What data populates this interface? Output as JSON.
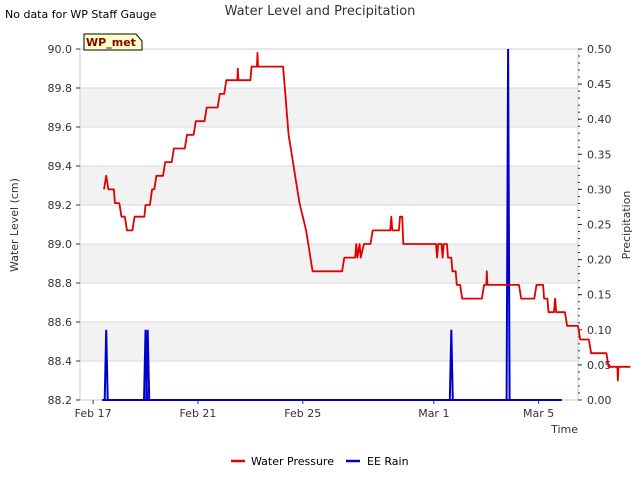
{
  "chart_data": {
    "type": "line",
    "title": "Water Level and Precipitation",
    "notice": "No data for WP Staff Gauge",
    "station_badge": "WP_met",
    "xlabel": "Time",
    "ylabel_left": "Water Level (cm)",
    "ylabel_right": "Precipitation",
    "x_range": [
      "Feb 16 12:00",
      "Mar 6 12:00"
    ],
    "x_ticks": [
      {
        "label": "Feb 17",
        "value": "Feb 17"
      },
      {
        "label": "Feb 21",
        "value": "Feb 21"
      },
      {
        "label": "Feb 25",
        "value": "Feb 25"
      },
      {
        "label": "Mar 1",
        "value": "Mar 1"
      },
      {
        "label": "Mar 5",
        "value": "Mar 5"
      }
    ],
    "ylim_left": [
      88.2,
      90.0
    ],
    "ylim_right": [
      0.0,
      0.5
    ],
    "y_ticks_left": [
      "88.2",
      "88.4",
      "88.6",
      "88.8",
      "89.0",
      "89.2",
      "89.4",
      "89.6",
      "89.8",
      "90.0"
    ],
    "y_ticks_right": [
      "0.00",
      "0.05",
      "0.10",
      "0.15",
      "0.20",
      "0.25",
      "0.30",
      "0.35",
      "0.40",
      "0.45",
      "0.50"
    ],
    "grid": "horizontal-bands",
    "legend_position": "bottom",
    "series": [
      {
        "name": "Water Pressure",
        "axis": "left",
        "color": "#e00000",
        "points": [
          [
            "Feb 17 10:00",
            89.28
          ],
          [
            "Feb 17 12:00",
            89.35
          ],
          [
            "Feb 17 14:00",
            89.28
          ],
          [
            "Feb 17 19:00",
            89.28
          ],
          [
            "Feb 17 20:00",
            89.21
          ],
          [
            "Feb 18 00:00",
            89.21
          ],
          [
            "Feb 18 02:00",
            89.14
          ],
          [
            "Feb 18 05:00",
            89.14
          ],
          [
            "Feb 18 07:00",
            89.07
          ],
          [
            "Feb 18 12:00",
            89.07
          ],
          [
            "Feb 18 14:00",
            89.14
          ],
          [
            "Feb 18 23:00",
            89.14
          ],
          [
            "Feb 19 00:00",
            89.2
          ],
          [
            "Feb 19 04:00",
            89.2
          ],
          [
            "Feb 19 06:00",
            89.28
          ],
          [
            "Feb 19 08:00",
            89.28
          ],
          [
            "Feb 19 10:00",
            89.35
          ],
          [
            "Feb 19 16:00",
            89.35
          ],
          [
            "Feb 19 18:00",
            89.42
          ],
          [
            "Feb 20 00:00",
            89.42
          ],
          [
            "Feb 20 02:00",
            89.49
          ],
          [
            "Feb 20 12:00",
            89.49
          ],
          [
            "Feb 20 14:00",
            89.56
          ],
          [
            "Feb 20 20:00",
            89.56
          ],
          [
            "Feb 20 22:00",
            89.63
          ],
          [
            "Feb 21 06:00",
            89.63
          ],
          [
            "Feb 21 08:00",
            89.7
          ],
          [
            "Feb 21 18:00",
            89.7
          ],
          [
            "Feb 21 20:00",
            89.77
          ],
          [
            "Feb 22 00:00",
            89.77
          ],
          [
            "Feb 22 02:00",
            89.84
          ],
          [
            "Feb 22 12:00",
            89.84
          ],
          [
            "Feb 22 12:30",
            89.9
          ],
          [
            "Feb 22 13:00",
            89.84
          ],
          [
            "Feb 23 00:00",
            89.84
          ],
          [
            "Feb 23 01:00",
            89.91
          ],
          [
            "Feb 23 06:00",
            89.91
          ],
          [
            "Feb 23 06:30",
            89.98
          ],
          [
            "Feb 23 07:00",
            89.91
          ],
          [
            "Feb 24 06:00",
            89.91
          ],
          [
            "Feb 24 07:00",
            89.84
          ],
          [
            "Feb 24 09:00",
            89.7
          ],
          [
            "Feb 24 11:00",
            89.56
          ],
          [
            "Feb 24 13:00",
            89.49
          ],
          [
            "Feb 24 15:00",
            89.42
          ],
          [
            "Feb 24 17:00",
            89.35
          ],
          [
            "Feb 24 19:00",
            89.28
          ],
          [
            "Feb 24 21:00",
            89.21
          ],
          [
            "Feb 25 00:00",
            89.14
          ],
          [
            "Feb 25 03:00",
            89.07
          ],
          [
            "Feb 25 05:00",
            89.0
          ],
          [
            "Feb 25 07:00",
            88.93
          ],
          [
            "Feb 25 09:00",
            88.86
          ],
          [
            "Feb 26 12:00",
            88.86
          ],
          [
            "Feb 26 14:00",
            88.93
          ],
          [
            "Feb 27 00:00",
            88.93
          ],
          [
            "Feb 27 01:00",
            89.0
          ],
          [
            "Feb 27 02:00",
            88.93
          ],
          [
            "Feb 27 04:00",
            89.0
          ],
          [
            "Feb 27 05:00",
            88.93
          ],
          [
            "Feb 27 08:00",
            89.0
          ],
          [
            "Feb 27 14:00",
            89.0
          ],
          [
            "Feb 27 16:00",
            89.07
          ],
          [
            "Feb 28 08:00",
            89.07
          ],
          [
            "Feb 28 09:00",
            89.14
          ],
          [
            "Feb 28 10:00",
            89.07
          ],
          [
            "Feb 28 16:00",
            89.07
          ],
          [
            "Feb 28 17:00",
            89.14
          ],
          [
            "Feb 28 19:00",
            89.14
          ],
          [
            "Feb 28 20:00",
            89.0
          ],
          [
            "Mar 1 02:00",
            89.0
          ],
          [
            "Mar 1 03:00",
            88.93
          ],
          [
            "Mar 1 04:00",
            89.0
          ],
          [
            "Mar 1 07:00",
            89.0
          ],
          [
            "Mar 1 08:00",
            88.93
          ],
          [
            "Mar 1 09:00",
            89.0
          ],
          [
            "Mar 1 12:00",
            89.0
          ],
          [
            "Mar 1 13:00",
            88.93
          ],
          [
            "Mar 1 16:00",
            88.93
          ],
          [
            "Mar 1 17:00",
            88.86
          ],
          [
            "Mar 1 20:00",
            88.86
          ],
          [
            "Mar 1 21:00",
            88.79
          ],
          [
            "Mar 2 00:00",
            88.79
          ],
          [
            "Mar 2 02:00",
            88.72
          ],
          [
            "Mar 2 20:00",
            88.72
          ],
          [
            "Mar 2 22:00",
            88.79
          ],
          [
            "Mar 3 00:00",
            88.79
          ],
          [
            "Mar 3 00:30",
            88.86
          ],
          [
            "Mar 3 01:00",
            88.79
          ],
          [
            "Mar 4 06:00",
            88.79
          ],
          [
            "Mar 4 08:00",
            88.72
          ],
          [
            "Mar 4 20:00",
            88.72
          ],
          [
            "Mar 4 22:00",
            88.79
          ],
          [
            "Mar 5 04:00",
            88.79
          ],
          [
            "Mar 5 05:00",
            88.72
          ],
          [
            "Mar 5 08:00",
            88.72
          ],
          [
            "Mar 5 09:00",
            88.65
          ],
          [
            "Mar 5 14:00",
            88.65
          ],
          [
            "Mar 5 15:00",
            88.72
          ],
          [
            "Mar 5 16:00",
            88.65
          ],
          [
            "Mar 6 00:00",
            88.65
          ],
          [
            "Mar 6 02:00",
            88.58
          ],
          [
            "Mar 6 12:00",
            88.58
          ],
          [
            "Mar 6 14:00",
            88.51
          ],
          [
            "Mar 6 22:00",
            88.51
          ],
          [
            "Mar 7 00:00",
            88.44
          ],
          [
            "Mar 7 14:00",
            88.44
          ],
          [
            "Mar 7 16:00",
            88.37
          ],
          [
            "Mar 8 00:00",
            88.37
          ],
          [
            "Mar 8 00:30",
            88.3
          ],
          [
            "Mar 8 01:00",
            88.37
          ],
          [
            "Mar 8 12:00",
            88.37
          ]
        ]
      },
      {
        "name": "EE Rain",
        "axis": "right",
        "color": "#0000cc",
        "points": [
          [
            "Feb 17 12:00",
            0.1
          ],
          [
            "Feb 19 00:00",
            0.1
          ],
          [
            "Feb 19 02:00",
            0.1
          ],
          [
            "Mar 1 16:00",
            0.1
          ],
          [
            "Mar 3 20:00",
            0.5
          ]
        ]
      }
    ]
  }
}
